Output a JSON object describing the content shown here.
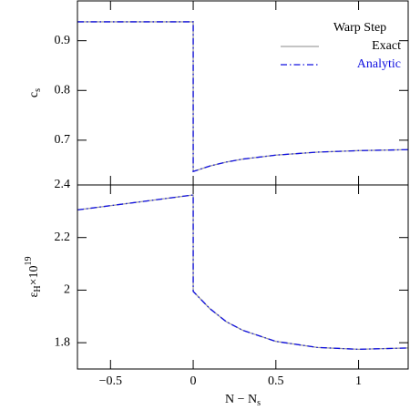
{
  "chart_data": [
    {
      "type": "line",
      "ylabel": {
        "text": "c",
        "subscript": "s"
      },
      "legend_title": "Warp Step",
      "legend": "upper right",
      "x": [
        -0.7,
        0,
        0,
        0.1,
        0.2,
        0.3,
        0.5,
        0.75,
        1.0,
        1.3
      ],
      "series": [
        {
          "name": "Exact",
          "color": "#a0a0a0",
          "style": "solid",
          "values": [
            0.938,
            0.938,
            0.637,
            0.648,
            0.656,
            0.662,
            0.67,
            0.676,
            0.679,
            0.681
          ]
        },
        {
          "name": "Analytic",
          "color": "#1010e0",
          "style": "dashdot",
          "values": [
            0.938,
            0.938,
            0.637,
            0.648,
            0.656,
            0.662,
            0.67,
            0.676,
            0.679,
            0.681
          ]
        }
      ],
      "xlim": [
        -0.7,
        1.3
      ],
      "ylim": [
        0.61,
        0.98
      ],
      "yticks": [
        0.7,
        0.8,
        0.9
      ]
    },
    {
      "type": "line",
      "ylabel": {
        "text": "ε",
        "subscript": "H",
        "after": "×10",
        "superscript": "19"
      },
      "xlabel": {
        "text": "N − N",
        "subscript": "s"
      },
      "x": [
        -0.7,
        0,
        0,
        0.1,
        0.2,
        0.3,
        0.5,
        0.75,
        1.0,
        1.3
      ],
      "series": [
        {
          "name": "Exact",
          "color": "#a0a0a0",
          "style": "solid",
          "values": [
            2.305,
            2.362,
            1.995,
            1.93,
            1.88,
            1.847,
            1.805,
            1.782,
            1.775,
            1.78
          ]
        },
        {
          "name": "Analytic",
          "color": "#1010e0",
          "style": "dashdot",
          "values": [
            2.305,
            2.362,
            1.995,
            1.93,
            1.88,
            1.847,
            1.805,
            1.782,
            1.775,
            1.78
          ]
        }
      ],
      "xlim": [
        -0.7,
        1.3
      ],
      "ylim": [
        1.7,
        2.4
      ],
      "xticks": [
        {
          "value": -0.5,
          "label": "−0.5"
        },
        0,
        0.5,
        1
      ],
      "yticks": [
        1.8,
        2,
        2.2,
        2.4
      ]
    }
  ]
}
